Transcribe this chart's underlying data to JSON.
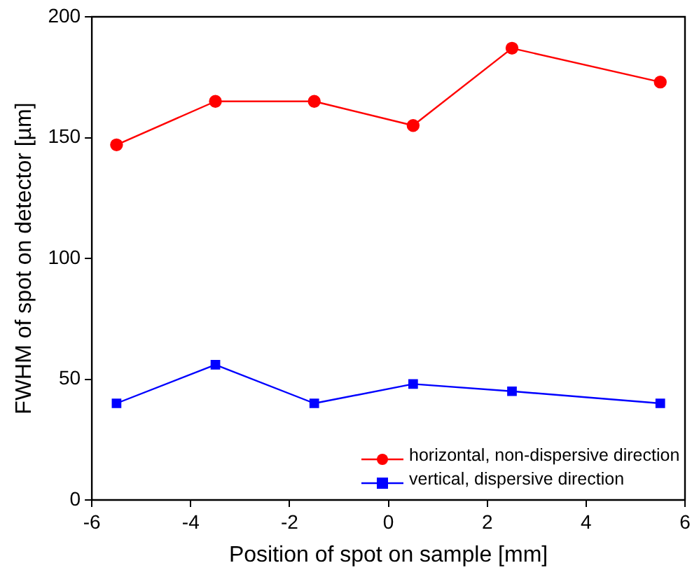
{
  "chart_data": {
    "type": "line",
    "xlabel": "Position of spot on sample [mm]",
    "ylabel": "FWHM of spot on detector [µm]",
    "x": [
      -5.5,
      -3.5,
      -1.5,
      0.5,
      2.5,
      5.5
    ],
    "series": [
      {
        "name": "horizontal, non-dispersive direction",
        "color": "#ff0000",
        "marker": "circle",
        "values": [
          147,
          165,
          165,
          155,
          187,
          173
        ]
      },
      {
        "name": "vertical, dispersive direction",
        "color": "#0000ff",
        "marker": "square",
        "values": [
          40,
          56,
          40,
          48,
          45,
          40
        ]
      }
    ],
    "xlim": [
      -6,
      6
    ],
    "xticks": [
      -6,
      -4,
      -2,
      0,
      2,
      4,
      6
    ],
    "ylim": [
      0,
      200
    ],
    "yticks": [
      0,
      50,
      100,
      150,
      200
    ],
    "grid": false,
    "legend": "bottom right",
    "line_style": "solid"
  }
}
